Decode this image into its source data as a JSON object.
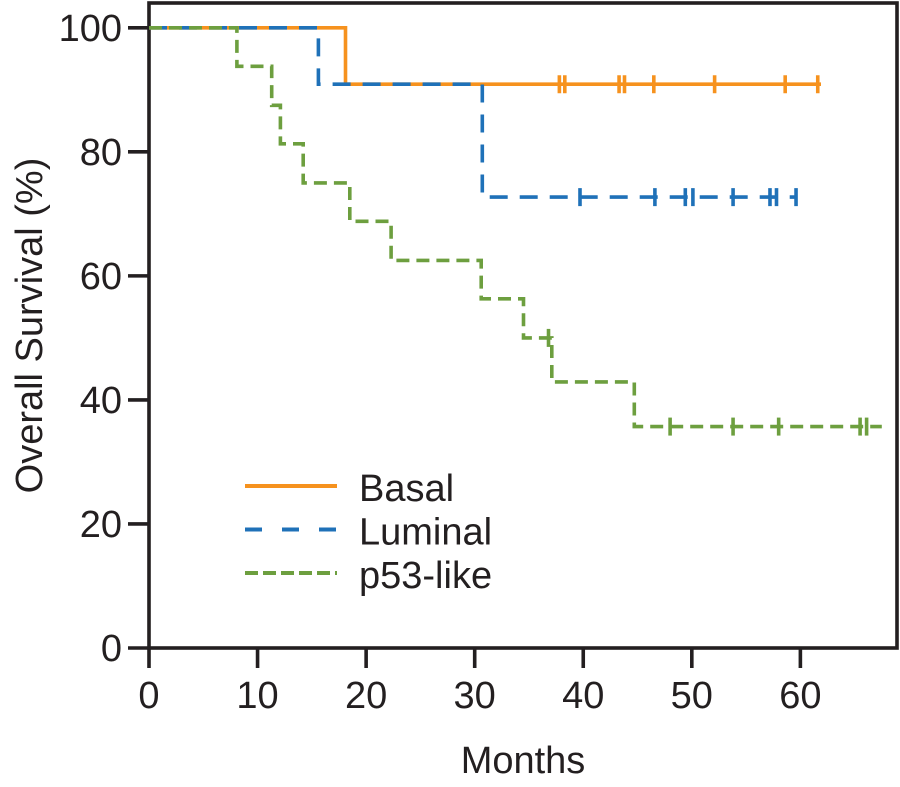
{
  "figure": {
    "kind": "kaplan-meier-survival-plot",
    "background": "#ffffff",
    "axis_color": "#231f20"
  },
  "chart_data": {
    "type": "line",
    "subtype": "step-survival",
    "title": "",
    "xlabel": "Months",
    "ylabel": "Overall Survival (%)",
    "xlim": [
      0,
      68.9
    ],
    "ylim": [
      0,
      104
    ],
    "x_ticks": [
      0,
      10,
      20,
      30,
      40,
      50,
      60
    ],
    "y_ticks": [
      0,
      20,
      40,
      60,
      80,
      100
    ],
    "grid": false,
    "legend_position": "inside-lower-left",
    "series": [
      {
        "name": "Basal",
        "color": "#f6921e",
        "line_style": "solid",
        "points": [
          [
            0,
            100
          ],
          [
            18.1,
            100
          ],
          [
            18.1,
            90.9
          ],
          [
            61.9,
            90.9
          ]
        ],
        "censors": [
          [
            37.8,
            90.9
          ],
          [
            38.3,
            90.9
          ],
          [
            43.3,
            90.9
          ],
          [
            43.8,
            90.9
          ],
          [
            46.5,
            90.9
          ],
          [
            52.1,
            90.9
          ],
          [
            58.6,
            90.9
          ],
          [
            61.6,
            90.9
          ]
        ]
      },
      {
        "name": "Luminal",
        "color": "#1f71b8",
        "line_style": "long-dash",
        "points": [
          [
            0,
            100
          ],
          [
            15.6,
            100
          ],
          [
            15.6,
            90.9
          ],
          [
            30.7,
            90.9
          ],
          [
            30.7,
            72.7
          ],
          [
            59.6,
            72.7
          ]
        ],
        "censors": [
          [
            39.7,
            72.7
          ],
          [
            46.6,
            72.7
          ],
          [
            49.4,
            72.7
          ],
          [
            50.1,
            72.7
          ],
          [
            53.8,
            72.7
          ],
          [
            57.2,
            72.7
          ],
          [
            57.8,
            72.7
          ],
          [
            59.6,
            72.7
          ]
        ]
      },
      {
        "name": "p53-like",
        "color": "#6d9f3f",
        "line_style": "short-dash",
        "points": [
          [
            0,
            100
          ],
          [
            8.1,
            100
          ],
          [
            8.1,
            93.8
          ],
          [
            11.3,
            93.8
          ],
          [
            11.3,
            87.5
          ],
          [
            12.1,
            87.5
          ],
          [
            12.1,
            81.3
          ],
          [
            14.2,
            81.3
          ],
          [
            14.2,
            75
          ],
          [
            18.5,
            75
          ],
          [
            18.5,
            68.8
          ],
          [
            22.3,
            68.8
          ],
          [
            22.3,
            62.5
          ],
          [
            30.6,
            62.5
          ],
          [
            30.6,
            56.3
          ],
          [
            34.5,
            56.3
          ],
          [
            34.5,
            50
          ],
          [
            37.1,
            50
          ],
          [
            37.1,
            42.9
          ],
          [
            44.7,
            42.9
          ],
          [
            44.7,
            35.7
          ],
          [
            67.5,
            35.7
          ]
        ],
        "censors": [
          [
            36.8,
            50
          ],
          [
            48.0,
            35.7
          ],
          [
            53.8,
            35.7
          ],
          [
            58.0,
            35.7
          ],
          [
            65.5,
            35.7
          ],
          [
            66.1,
            35.7
          ]
        ]
      }
    ],
    "legend": [
      {
        "label": "Basal"
      },
      {
        "label": "Luminal"
      },
      {
        "label": "p53-like"
      }
    ]
  }
}
